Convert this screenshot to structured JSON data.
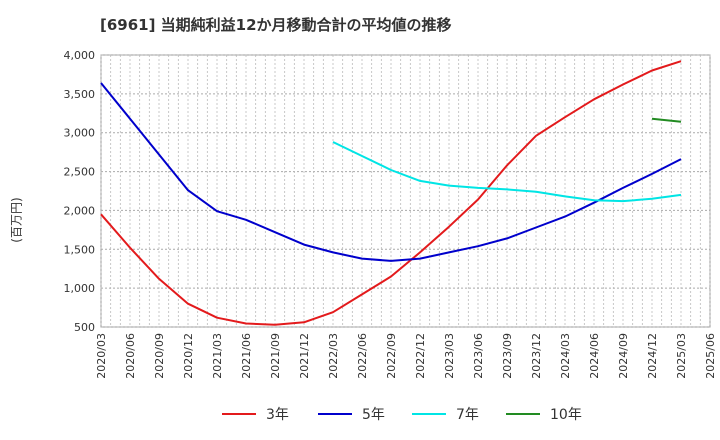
{
  "chart_data": {
    "type": "line",
    "title": "[6961]  当期純利益12か月移動合計の平均値の推移",
    "ylabel": "(百万円)",
    "xlabel": "",
    "ylim": [
      500,
      4000
    ],
    "yticks": [
      500,
      1000,
      1500,
      2000,
      2500,
      3000,
      3500,
      4000
    ],
    "ytick_labels": [
      "500",
      "1,000",
      "1,500",
      "2,000",
      "2,500",
      "3,000",
      "3,500",
      "4,000"
    ],
    "grid": true,
    "legend_position": "bottom",
    "x": [
      "2020/03",
      "2020/06",
      "2020/09",
      "2020/12",
      "2021/03",
      "2021/06",
      "2021/09",
      "2021/12",
      "2022/03",
      "2022/06",
      "2022/09",
      "2022/12",
      "2023/03",
      "2023/06",
      "2023/09",
      "2023/12",
      "2024/03",
      "2024/06",
      "2024/09",
      "2024/12",
      "2025/03",
      "2025/06"
    ],
    "series": [
      {
        "name": "3年",
        "color": "#e31a1c",
        "values": [
          1950,
          1520,
          1120,
          800,
          620,
          545,
          530,
          560,
          690,
          920,
          1150,
          1460,
          1790,
          2140,
          2580,
          2960,
          3200,
          3430,
          3620,
          3800,
          3920,
          null
        ]
      },
      {
        "name": "5年",
        "color": "#0000cc",
        "values": [
          3640,
          3180,
          2720,
          2260,
          1990,
          1880,
          1720,
          1560,
          1460,
          1380,
          1350,
          1380,
          1460,
          1540,
          1640,
          1780,
          1920,
          2100,
          2290,
          2470,
          2660,
          null
        ]
      },
      {
        "name": "7年",
        "color": "#00e5e5",
        "values": [
          null,
          null,
          null,
          null,
          null,
          null,
          null,
          null,
          2880,
          2700,
          2520,
          2380,
          2320,
          2290,
          2270,
          2240,
          2180,
          2130,
          2120,
          2150,
          2200,
          null
        ]
      },
      {
        "name": "10年",
        "color": "#228b22",
        "values": [
          null,
          null,
          null,
          null,
          null,
          null,
          null,
          null,
          null,
          null,
          null,
          null,
          null,
          null,
          null,
          null,
          null,
          null,
          null,
          3180,
          3140,
          null
        ]
      }
    ]
  }
}
